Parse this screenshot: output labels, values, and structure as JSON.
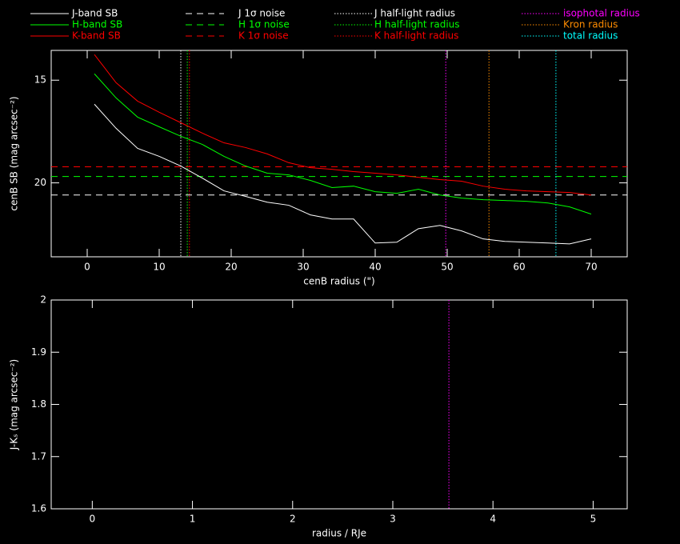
{
  "chart_data": [
    {
      "type": "line",
      "xlabel": "cenB radius (\")",
      "ylabel": "cenB SB (mag arcsec⁻²)",
      "xlim": [
        -5,
        75
      ],
      "ylim": [
        23.6,
        13.55
      ],
      "xticks": [
        0,
        10,
        20,
        30,
        40,
        50,
        60,
        70
      ],
      "yticks": [
        15,
        20
      ],
      "x": [
        1,
        4,
        7,
        10,
        13,
        16,
        19,
        22,
        25,
        28,
        31,
        34,
        37,
        40,
        43,
        46,
        49,
        52,
        55,
        58,
        61,
        64,
        67,
        70
      ],
      "series": [
        {
          "name": "J-band SB",
          "color": "#ffffff",
          "dash": "solid",
          "values": [
            16.17,
            17.34,
            18.32,
            18.71,
            19.18,
            19.77,
            20.39,
            20.66,
            20.94,
            21.09,
            21.56,
            21.76,
            21.76,
            22.93,
            22.89,
            22.23,
            22.07,
            22.34,
            22.73,
            22.85,
            22.89,
            22.93,
            22.97,
            22.73
          ]
        },
        {
          "name": "H-band SB",
          "color": "#00ff00",
          "dash": "solid",
          "values": [
            14.69,
            15.86,
            16.8,
            17.27,
            17.73,
            18.13,
            18.71,
            19.18,
            19.53,
            19.61,
            19.88,
            20.23,
            20.16,
            20.43,
            20.51,
            20.31,
            20.59,
            20.74,
            20.82,
            20.86,
            20.9,
            20.98,
            21.17,
            21.52
          ]
        },
        {
          "name": "K-band SB",
          "color": "#ff0000",
          "dash": "solid",
          "values": [
            13.75,
            15.12,
            16.02,
            16.56,
            17.07,
            17.58,
            18.05,
            18.28,
            18.59,
            19.02,
            19.26,
            19.34,
            19.45,
            19.53,
            19.61,
            19.73,
            19.84,
            19.92,
            20.16,
            20.31,
            20.39,
            20.43,
            20.47,
            20.59
          ]
        }
      ],
      "hlines": [
        {
          "name": "J 1σ noise",
          "color": "#ffffff",
          "dash": "dashed",
          "value": 20.59
        },
        {
          "name": "H 1σ noise",
          "color": "#00ff00",
          "dash": "dashed",
          "value": 19.69
        },
        {
          "name": "K 1σ noise",
          "color": "#ff0000",
          "dash": "dashed",
          "value": 19.22
        }
      ],
      "vlines": [
        {
          "name": "J half-light radius",
          "color": "#ffffff",
          "dash": "dotted",
          "value": 13.0
        },
        {
          "name": "H half-light radius",
          "color": "#00ff00",
          "dash": "dotted",
          "value": 13.9
        },
        {
          "name": "K half-light radius",
          "color": "#ff0000",
          "dash": "dotted",
          "value": 14.2
        },
        {
          "name": "isophotal radius",
          "color": "#ff00ff",
          "dash": "dotted",
          "value": 49.8
        },
        {
          "name": "Kron radius",
          "color": "#ff8c00",
          "dash": "dotted",
          "value": 55.8
        },
        {
          "name": "total radius",
          "color": "#00ffff",
          "dash": "dotted",
          "value": 65.1
        }
      ]
    },
    {
      "type": "line",
      "xlabel": "radius / RJe",
      "ylabel": "J-Kₛ (mag arcsec⁻²)",
      "xlim": [
        -0.41,
        5.34
      ],
      "ylim": [
        1.6,
        2
      ],
      "xticks": [
        0,
        1,
        2,
        3,
        4,
        5
      ],
      "yticks": [
        1.6,
        1.7,
        1.8,
        1.9,
        2
      ],
      "vlines": [
        {
          "color": "#ff00ff",
          "dash": "dotted",
          "value": 3.56
        }
      ]
    }
  ]
}
